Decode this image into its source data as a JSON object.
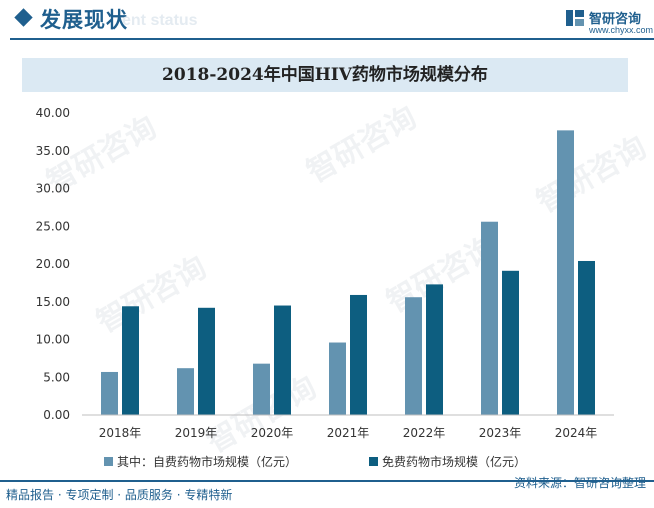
{
  "header": {
    "title": "发展现状",
    "ghost_text": "ent status"
  },
  "logo": {
    "brand": "智研咨询",
    "url": "www.chyxx.com",
    "watermark": "智研咨询"
  },
  "footer": {
    "tagline": "精品报告 · 专项定制 · 品质服务 · 专精特新",
    "source": "资料来源：智研咨询整理"
  },
  "colors": {
    "brand": "#1f5f8e",
    "series_self_pay": "#6393b0",
    "series_free": "#0d5e80",
    "title_band": "#dbe9f3"
  },
  "chart_data": {
    "type": "bar",
    "title": "2018-2024年中国HIV药物市场规模分布",
    "categories": [
      "2018年",
      "2019年",
      "2020年",
      "2021年",
      "2022年",
      "2023年",
      "2024年"
    ],
    "series": [
      {
        "name": "其中：自费药物市场规模（亿元）",
        "values": [
          5.7,
          6.2,
          6.8,
          9.6,
          15.6,
          25.6,
          37.7
        ]
      },
      {
        "name": "免费药物市场规模（亿元）",
        "values": [
          14.4,
          14.2,
          14.5,
          15.9,
          17.3,
          19.1,
          20.4
        ]
      }
    ],
    "ylim": [
      0,
      40
    ],
    "yticks": [
      "0.00",
      "5.00",
      "10.00",
      "15.00",
      "20.00",
      "25.00",
      "30.00",
      "35.00",
      "40.00"
    ],
    "grid": false,
    "legend": "bottom"
  }
}
